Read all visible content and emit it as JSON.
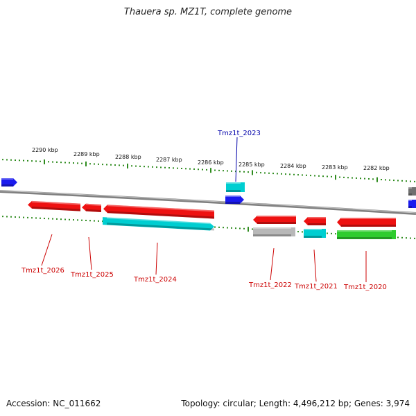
{
  "title": "Thauera sp. MZ1T, complete genome",
  "footer": {
    "accession": "Accession: NC_011662",
    "summary": "Topology: circular; Length: 4,496,212 bp; Genes: 3,974"
  },
  "colors": {
    "backbone": "#808080",
    "tick": "#2e8b1e",
    "cds": "#ee1111",
    "trna": "#00ced1",
    "rrna": "#2ecc2e",
    "misc": "#1a1aee",
    "pseudo": "#b8b8b8",
    "gray": "#707070",
    "label_red": "#cc0000",
    "label_blue": "#0000aa"
  },
  "scale": {
    "unit": "kbp",
    "ticks": [
      {
        "label": "2290 kbp"
      },
      {
        "label": "2289 kbp"
      },
      {
        "label": "2288 kbp"
      },
      {
        "label": "2287 kbp"
      },
      {
        "label": "2286 kbp"
      },
      {
        "label": "2285 kbp"
      },
      {
        "label": "2284 kbp"
      },
      {
        "label": "2283 kbp"
      },
      {
        "label": "2282 kbp"
      }
    ]
  },
  "genes": [
    {
      "name": "Tmz1t_2026",
      "type": "cds"
    },
    {
      "name": "Tmz1t_2025",
      "type": "cds"
    },
    {
      "name": "Tmz1t_2024",
      "type": "cds"
    },
    {
      "name": "Tmz1t_2023",
      "type": "trna"
    },
    {
      "name": "Tmz1t_2022",
      "type": "cds"
    },
    {
      "name": "Tmz1t_2021",
      "type": "cds"
    },
    {
      "name": "Tmz1t_2020",
      "type": "cds"
    }
  ]
}
